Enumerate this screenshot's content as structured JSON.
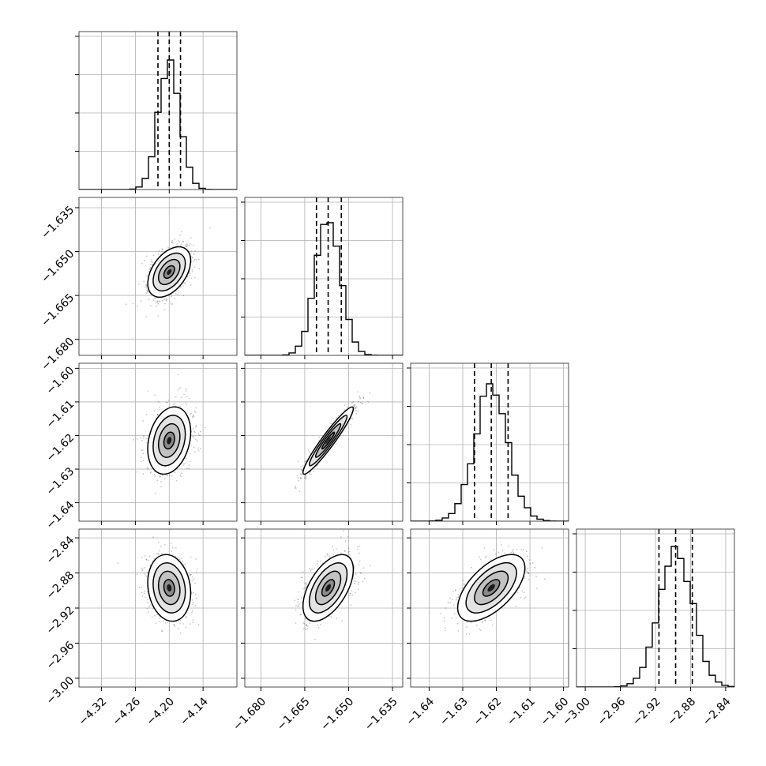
{
  "chart_data": {
    "type": "corner",
    "title": "",
    "grid": true,
    "parameters": [
      {
        "range": [
          -4.36,
          -4.08
        ],
        "ticks": [
          -4.32,
          -4.26,
          -4.2,
          -4.14
        ],
        "tick_labels": [
          "−4.32",
          "−4.26",
          "−4.20",
          "−4.14"
        ],
        "median": -4.2,
        "q16": -4.22,
        "q84": -4.18,
        "sigma": 0.019,
        "hist_level": 0.82
      },
      {
        "range": [
          -1.6855,
          -1.6315
        ],
        "ticks": [
          -1.68,
          -1.665,
          -1.65,
          -1.635
        ],
        "tick_labels": [
          "−1.680",
          "−1.665",
          "−1.650",
          "−1.635"
        ],
        "median": -1.657,
        "q16": -1.661,
        "q84": -1.6525,
        "sigma": 0.0043,
        "hist_level": 0.84
      },
      {
        "range": [
          -1.6455,
          -1.5985
        ],
        "ticks": [
          -1.64,
          -1.63,
          -1.62,
          -1.61,
          -1.6
        ],
        "tick_labels": [
          "−1.64",
          "−1.63",
          "−1.62",
          "−1.61",
          "−1.60"
        ],
        "median": -1.6215,
        "q16": -1.6265,
        "q84": -1.6165,
        "sigma": 0.005,
        "hist_level": 0.87
      },
      {
        "range": [
          -3.01,
          -2.83
        ],
        "ticks": [
          -3.0,
          -2.96,
          -2.92,
          -2.88,
          -2.84
        ],
        "tick_labels": [
          "−3.00",
          "−2.96",
          "−2.92",
          "−2.88",
          "−2.84"
        ],
        "median": -2.897,
        "q16": -2.916,
        "q84": -2.878,
        "sigma": 0.019,
        "hist_level": 0.89
      }
    ],
    "correlations": [
      [
        1.0,
        0.45,
        0.25,
        -0.15
      ],
      [
        0.45,
        1.0,
        0.95,
        0.55
      ],
      [
        0.25,
        0.95,
        1.0,
        0.6
      ],
      [
        -0.15,
        0.55,
        0.6,
        1.0
      ]
    ],
    "contour_sigma_levels": [
      0.5,
      1.0,
      1.5,
      2.0
    ],
    "colors": {
      "line": "#000000",
      "grid": "#b0b0b0",
      "scatter": "#000000",
      "fill": "#ffffff"
    }
  }
}
